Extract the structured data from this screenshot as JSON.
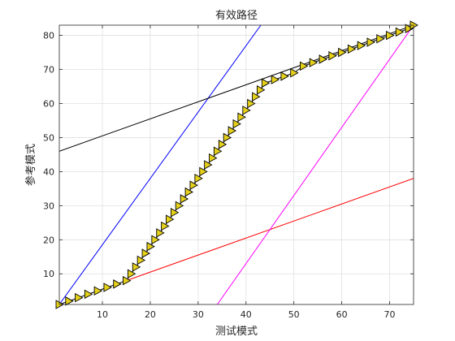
{
  "chart_data": {
    "type": "line",
    "title": "有效路径",
    "xlabel": "测试模式",
    "ylabel": "参考模式",
    "xlim": [
      1,
      75
    ],
    "ylim": [
      1,
      83
    ],
    "grid": true,
    "x_ticks": [
      10,
      20,
      30,
      40,
      50,
      60,
      70
    ],
    "y_ticks": [
      10,
      20,
      30,
      40,
      50,
      60,
      70,
      80
    ],
    "colors": {
      "path_fill": "#e6d11a",
      "path_edge": "#000000",
      "blue_line": "#0000ff",
      "black_line": "#000000",
      "red_line": "#ff0000",
      "magenta_line": "#ff00ff",
      "grid": "#e0e0e0",
      "axes": "#262626"
    },
    "series": [
      {
        "type": "marker-line",
        "marker": "triangle-right",
        "color": "#e6d11a",
        "x": [
          1,
          3,
          5,
          7,
          9,
          11,
          13,
          15,
          16,
          17,
          18,
          19,
          20,
          21,
          22,
          23,
          24,
          25,
          26,
          27,
          28,
          29,
          30,
          31,
          32,
          33,
          34,
          35,
          36,
          37,
          38,
          39,
          40,
          41,
          42,
          43,
          44,
          46,
          48,
          50,
          52,
          54,
          56,
          58,
          60,
          62,
          64,
          66,
          68,
          70,
          72,
          74,
          75
        ],
        "y": [
          1,
          2,
          3,
          4,
          5,
          6,
          7,
          8,
          10,
          12,
          14,
          16,
          18,
          20,
          22,
          24,
          26,
          28,
          30,
          32,
          34,
          36,
          38,
          40,
          42,
          44,
          46,
          48,
          50,
          52,
          54,
          56,
          58,
          60,
          62,
          64,
          66,
          67,
          68,
          69,
          71,
          72,
          73,
          74,
          75,
          76,
          77,
          78,
          79,
          80,
          81,
          82,
          83
        ]
      },
      {
        "type": "line",
        "color": "#0000ff",
        "x": [
          1,
          43.1
        ],
        "y": [
          1,
          83
        ]
      },
      {
        "type": "line",
        "color": "#000000",
        "x": [
          1,
          75
        ],
        "y": [
          46,
          83
        ]
      },
      {
        "type": "line",
        "color": "#ff0000",
        "x": [
          15,
          75
        ],
        "y": [
          8,
          38
        ]
      },
      {
        "type": "line",
        "color": "#ff00ff",
        "x": [
          34,
          75
        ],
        "y": [
          1,
          83
        ]
      }
    ]
  }
}
